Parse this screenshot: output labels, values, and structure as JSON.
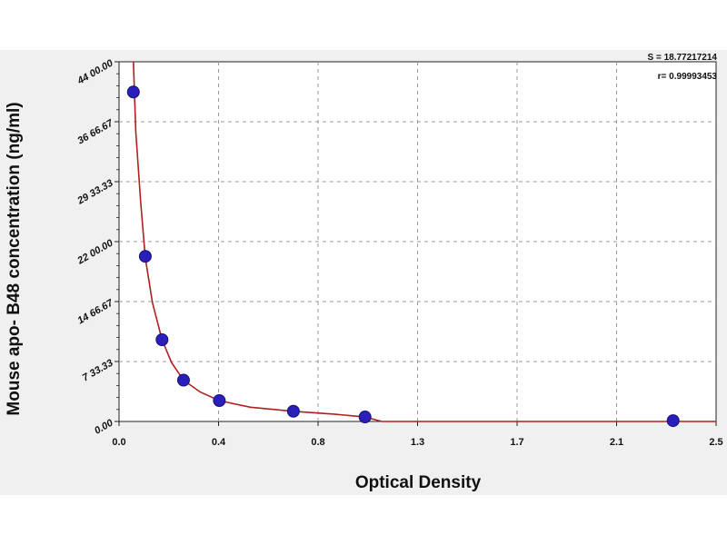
{
  "chart_data": {
    "type": "scatter",
    "xlabel": "Optical Density",
    "ylabel": "Mouse apo- B48 concentration (ng/ml)",
    "xlim": [
      0.0,
      2.5
    ],
    "ylim": [
      0,
      4400
    ],
    "x_ticks": [
      "0.0",
      "0.4",
      "0.8",
      "1.3",
      "1.7",
      "2.1",
      "2.5"
    ],
    "y_ticks": [
      "0.00",
      "733.33",
      "1466.67",
      "2200.00",
      "2933.33",
      "3666.67",
      "4400.00"
    ],
    "y_tick_display": [
      "0.00",
      "7 33.33",
      "14 66.67",
      "22 00.00",
      "29 33.33",
      "36 66.67",
      "44 00.00"
    ],
    "grid": true,
    "stats": [
      "S = 18.77217214",
      "r = 0.99993453"
    ],
    "stats_display": [
      "S = 18.77217214",
      "r= 0.99993453"
    ],
    "points": [
      {
        "x": 0.06,
        "y": 4030
      },
      {
        "x": 0.11,
        "y": 2020
      },
      {
        "x": 0.18,
        "y": 1000
      },
      {
        "x": 0.27,
        "y": 505
      },
      {
        "x": 0.42,
        "y": 255
      },
      {
        "x": 0.73,
        "y": 125
      },
      {
        "x": 1.03,
        "y": 55
      },
      {
        "x": 2.32,
        "y": 10
      }
    ],
    "fit_curve": [
      {
        "x": 0.06,
        "y": 4400
      },
      {
        "x": 0.07,
        "y": 3550
      },
      {
        "x": 0.09,
        "y": 2700
      },
      {
        "x": 0.11,
        "y": 2000
      },
      {
        "x": 0.14,
        "y": 1450
      },
      {
        "x": 0.18,
        "y": 1000
      },
      {
        "x": 0.22,
        "y": 720
      },
      {
        "x": 0.27,
        "y": 505
      },
      {
        "x": 0.34,
        "y": 360
      },
      {
        "x": 0.42,
        "y": 255
      },
      {
        "x": 0.55,
        "y": 175
      },
      {
        "x": 0.73,
        "y": 125
      },
      {
        "x": 0.9,
        "y": 90
      },
      {
        "x": 1.03,
        "y": 55
      },
      {
        "x": 1.1,
        "y": 0
      },
      {
        "x": 1.4,
        "y": 0
      },
      {
        "x": 2.0,
        "y": 0
      },
      {
        "x": 2.5,
        "y": 0
      }
    ],
    "colors": {
      "plot_background": "#ffffff",
      "page_background": "#f0f0f0",
      "grid": "#9a9a9a",
      "points": "#2a1fb8",
      "curve": "#b02020"
    }
  }
}
